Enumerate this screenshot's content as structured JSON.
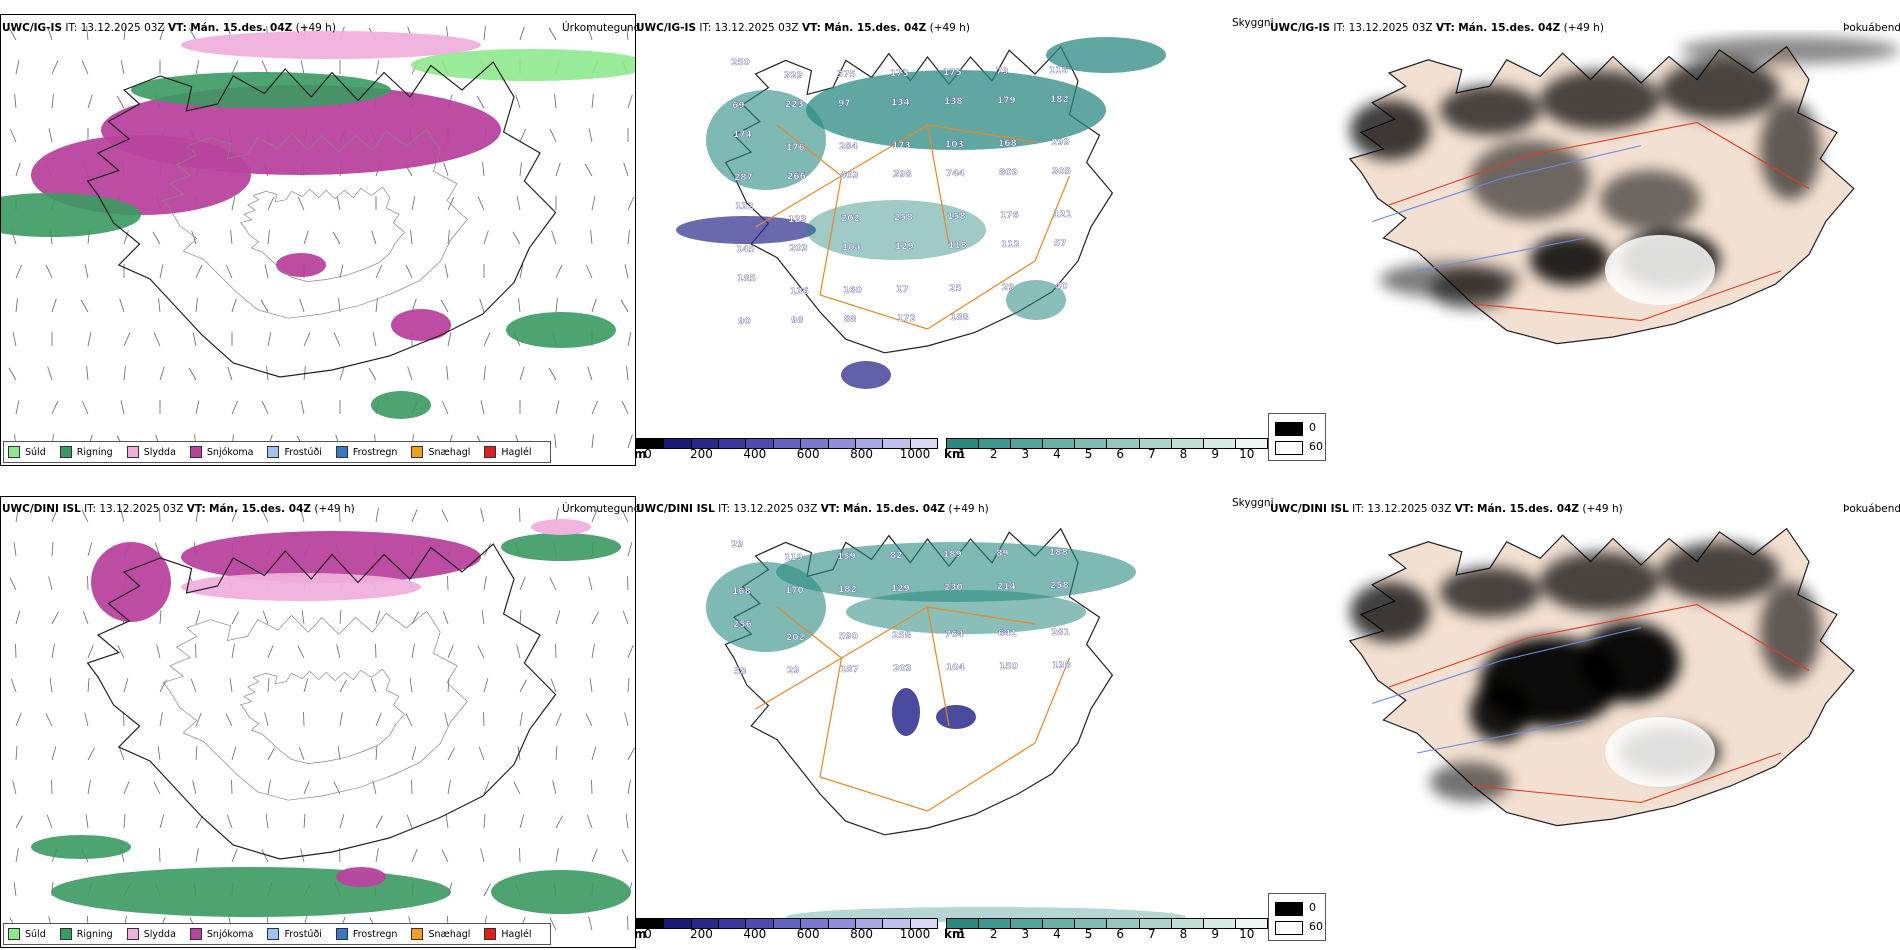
{
  "rows": [
    {
      "model": "UWC/IG-IS",
      "it_label": "IT:",
      "it_value": "13.12.2025 03Z",
      "vt_label": "VT:",
      "vt_value": "Mán. 15.des. 04Z",
      "lead": "(+49 h)"
    },
    {
      "model": "UWC/DINI ISL",
      "it_label": "IT:",
      "it_value": "13.12.2025 03Z",
      "vt_label": "VT:",
      "vt_value": "Mán. 15.des. 04Z",
      "lead": "(+49 h)"
    }
  ],
  "panel_labels": {
    "precip": "Úrkomutegund",
    "visibility": "Skyggni",
    "cloud": "Þokuábendi"
  },
  "precip_legend": [
    {
      "label": "Súld",
      "color": "#8ee88e"
    },
    {
      "label": "Rigning",
      "color": "#3a9a60"
    },
    {
      "label": "Slydda",
      "color": "#f0b0dc"
    },
    {
      "label": "Snjókoma",
      "color": "#b8439e"
    },
    {
      "label": "Frostúði",
      "color": "#a0c4f0"
    },
    {
      "label": "Frostregn",
      "color": "#3a78c8"
    },
    {
      "label": "Snæhagl",
      "color": "#f0a020"
    },
    {
      "label": "Haglél",
      "color": "#e02020"
    }
  ],
  "colorbar_m": {
    "unit": "m",
    "ticks": [
      "0",
      "200",
      "400",
      "600",
      "800",
      "1000"
    ],
    "colors": [
      "#000000",
      "#1a1a7a",
      "#28288e",
      "#3838a0",
      "#4c4cb0",
      "#6262c0",
      "#7878cc",
      "#9090d8",
      "#a8a8e2",
      "#c0c0ec",
      "#d8d8f4"
    ]
  },
  "colorbar_km": {
    "unit": "km",
    "ticks": [
      "1",
      "2",
      "3",
      "4",
      "5",
      "6",
      "7",
      "8",
      "9",
      "10"
    ],
    "colors": [
      "#2a8a80",
      "#3c9890",
      "#52a49c",
      "#68b0a8",
      "#7ebcb4",
      "#94c8c0",
      "#aad4cc",
      "#c0e0d8",
      "#d6ece6",
      "#ecf6f3"
    ]
  },
  "shade_legend": {
    "low": "0",
    "high": "60"
  },
  "vis_labels_top": [
    "250",
    "329",
    "375",
    "173",
    "175",
    "79",
    "116",
    "69",
    "223",
    "97",
    "134",
    "138",
    "179",
    "182",
    "174",
    "176",
    "284",
    "173",
    "103",
    "168",
    "299",
    "287",
    "266",
    "403",
    "398",
    "744",
    "809",
    "305",
    "132",
    "123",
    "202",
    "258",
    "158",
    "176",
    "121",
    "145",
    "203",
    "104",
    "129",
    "118",
    "112",
    "57",
    "185",
    "136",
    "160",
    "17",
    "25",
    "29",
    "40",
    "90",
    "98",
    "88",
    "172",
    "188"
  ],
  "vis_labels_bottom": [
    "29",
    "119",
    "159",
    "82",
    "189",
    "89",
    "188",
    "168",
    "170",
    "182",
    "129",
    "230",
    "214",
    "258",
    "256",
    "202",
    "590",
    "258",
    "764",
    "641",
    "281",
    "58",
    "29",
    "187",
    "203",
    "104",
    "150",
    "138"
  ],
  "colors": {
    "road": "#e8872a",
    "road_red": "#e23a1e",
    "land_tan": "#f2e0d2",
    "coast": "#222222",
    "snow": "#b8439e",
    "sleet": "#f0b0dc",
    "rain": "#3a9a60",
    "drizzle": "#8ee88e",
    "teal": "#2a8a80",
    "navy": "#2a2a8e"
  }
}
